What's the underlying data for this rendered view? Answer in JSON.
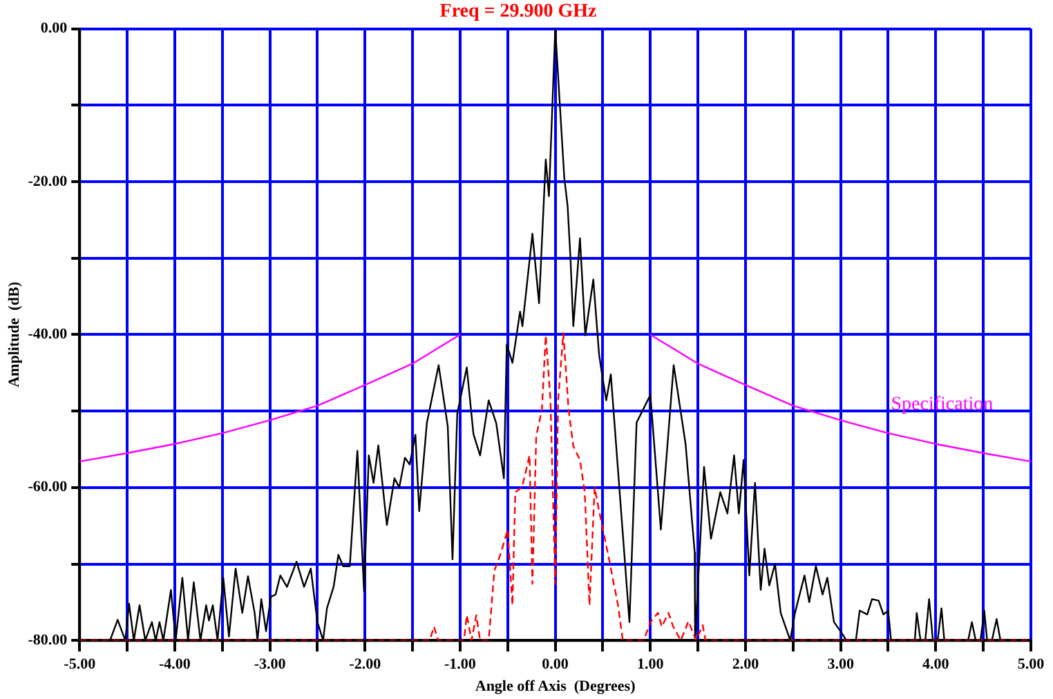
{
  "chart_data": {
    "type": "line",
    "title": "Freq = 29.900 GHz",
    "xlabel": "Angle off Axis  (Degrees)",
    "ylabel": "Amplitude  (dB)",
    "xlim": [
      -5,
      5
    ],
    "ylim": [
      -80,
      0
    ],
    "xticks": [
      {
        "value": -5,
        "label": "-5.00"
      },
      {
        "value": -4.5,
        "label": null
      },
      {
        "value": -4,
        "label": "-4.00"
      },
      {
        "value": -3.5,
        "label": null
      },
      {
        "value": -3,
        "label": "-3.00"
      },
      {
        "value": -2.5,
        "label": null
      },
      {
        "value": -2,
        "label": "-2.00"
      },
      {
        "value": -1.5,
        "label": null
      },
      {
        "value": -1,
        "label": "-1.00"
      },
      {
        "value": -0.5,
        "label": null
      },
      {
        "value": 0,
        "label": "0.00"
      },
      {
        "value": 0.5,
        "label": null
      },
      {
        "value": 1,
        "label": "1.00"
      },
      {
        "value": 1.5,
        "label": null
      },
      {
        "value": 2,
        "label": "2.00"
      },
      {
        "value": 2.5,
        "label": null
      },
      {
        "value": 3,
        "label": "3.00"
      },
      {
        "value": 3.5,
        "label": null
      },
      {
        "value": 4,
        "label": "4.00"
      },
      {
        "value": 4.5,
        "label": null
      },
      {
        "value": 5,
        "label": "5.00"
      }
    ],
    "yticks": [
      {
        "value": -80,
        "label": "-80.00"
      },
      {
        "value": -70,
        "label": null
      },
      {
        "value": -60,
        "label": "-60.00"
      },
      {
        "value": -50,
        "label": null
      },
      {
        "value": -40,
        "label": "-40.00"
      },
      {
        "value": -30,
        "label": null
      },
      {
        "value": -20,
        "label": "-20.00"
      },
      {
        "value": -10,
        "label": null
      },
      {
        "value": 0,
        "label": "0.00"
      }
    ],
    "grid": true,
    "marker": "none",
    "series": [
      {
        "color": "#000000",
        "line_style": "solid",
        "x": [
          -5,
          -4.68,
          -4.6,
          -4.52,
          -4.48,
          -4.43,
          -4.37,
          -4.31,
          -4.24,
          -4.2,
          -4.16,
          -4.12,
          -4.04,
          -3.99,
          -3.92,
          -3.86,
          -3.8,
          -3.73,
          -3.67,
          -3.64,
          -3.6,
          -3.55,
          -3.49,
          -3.43,
          -3.36,
          -3.29,
          -3.23,
          -3.16,
          -3.13,
          -3.09,
          -3.04,
          -2.99,
          -2.94,
          -2.89,
          -2.82,
          -2.72,
          -2.64,
          -2.57,
          -2.5,
          -2.44,
          -2.4,
          -2.33,
          -2.28,
          -2.23,
          -2.16,
          -2.08,
          -2.01,
          -1.96,
          -1.91,
          -1.86,
          -1.77,
          -1.69,
          -1.64,
          -1.58,
          -1.53,
          -1.47,
          -1.43,
          -1.35,
          -1.226,
          -1.13,
          -1.08,
          -1.03,
          -0.93,
          -0.86,
          -0.79,
          -0.7,
          -0.62,
          -0.54,
          -0.51,
          -0.45,
          -0.37,
          -0.345,
          -0.24,
          -0.17,
          -0.1,
          -0.066,
          0,
          0.095,
          0.13,
          0.16,
          0.19,
          0.26,
          0.316,
          0.4,
          0.46,
          0.488,
          0.536,
          0.584,
          0.78,
          0.855,
          1.0,
          1.11,
          1.245,
          1.37,
          1.466,
          1.47,
          1.564,
          1.637,
          1.735,
          1.81,
          1.88,
          1.93,
          1.98,
          2.04,
          2.1,
          2.16,
          2.2,
          2.25,
          2.31,
          2.37,
          2.47,
          2.52,
          2.62,
          2.67,
          2.74,
          2.81,
          2.86,
          2.93,
          3.01,
          3.06,
          3.16,
          3.2,
          3.28,
          3.33,
          3.4,
          3.45,
          3.5,
          3.53,
          3.78,
          3.8,
          3.84,
          3.89,
          3.93,
          3.97,
          4.02,
          4.06,
          4.09,
          4.34,
          4.38,
          4.42,
          4.47,
          4.51,
          4.54,
          4.59,
          4.64,
          4.68,
          5
        ],
        "values": [
          -80,
          -80,
          -77.3,
          -80,
          -75.2,
          -80,
          -75.4,
          -80,
          -77.6,
          -80,
          -77.6,
          -80,
          -73.4,
          -80,
          -71.8,
          -80,
          -72.4,
          -80,
          -75.4,
          -77.4,
          -75.4,
          -80,
          -71.8,
          -79.5,
          -70.6,
          -76.4,
          -71.6,
          -76.4,
          -80,
          -74.6,
          -78.8,
          -74.3,
          -74,
          -71.5,
          -73,
          -69.7,
          -73,
          -70.6,
          -77.6,
          -80,
          -75.8,
          -73,
          -68.8,
          -70.3,
          -70.3,
          -55.2,
          -73.6,
          -55.8,
          -59.4,
          -54.5,
          -64.9,
          -58.8,
          -60,
          -56.1,
          -57,
          -53.1,
          -63.1,
          -51.6,
          -44,
          -52,
          -69.4,
          -50.3,
          -44.3,
          -53,
          -55.8,
          -48.6,
          -51.6,
          -58.8,
          -41.3,
          -43.7,
          -37,
          -38.9,
          -26.8,
          -35.9,
          -17.1,
          -21.9,
          0,
          -19.5,
          -23.2,
          -30,
          -38.9,
          -27.4,
          -40.1,
          -32.8,
          -42.5,
          -44.9,
          -48.6,
          -45.2,
          -77.6,
          -51.5,
          -47.9,
          -65.5,
          -44,
          -54.3,
          -68.5,
          -80,
          -57.3,
          -66.7,
          -60.6,
          -63.4,
          -55.8,
          -63.4,
          -56.4,
          -71.5,
          -59.4,
          -73.4,
          -68,
          -72.8,
          -70,
          -76.4,
          -80,
          -76.4,
          -71.5,
          -75,
          -70.3,
          -74,
          -71.8,
          -77.6,
          -79,
          -80,
          -80,
          -76.1,
          -76.6,
          -74.6,
          -74.8,
          -76.6,
          -76.1,
          -80,
          -80,
          -76.4,
          -80,
          -80,
          -74.6,
          -80,
          -80,
          -75.8,
          -80,
          -80,
          -77.6,
          -80,
          -80,
          -76.1,
          -80,
          -80,
          -77.2,
          -80,
          -80
        ]
      },
      {
        "color": "#ff0000",
        "line_style": "dashed",
        "x": [
          -5,
          -1.32,
          -1.275,
          -1.23,
          -0.96,
          -0.93,
          -0.88,
          -0.83,
          -0.79,
          -0.7,
          -0.64,
          -0.57,
          -0.5,
          -0.45,
          -0.42,
          -0.35,
          -0.27,
          -0.24,
          -0.2,
          -0.14,
          -0.1,
          -0.05,
          0,
          0.03,
          0.085,
          0.14,
          0.19,
          0.26,
          0.31,
          0.36,
          0.414,
          0.46,
          0.54,
          0.58,
          0.66,
          0.71,
          0.93,
          1.0,
          1.08,
          1.12,
          1.19,
          1.24,
          1.32,
          1.4,
          1.48,
          1.55,
          1.58,
          5
        ],
        "values": [
          -80,
          -80,
          -78.2,
          -80,
          -80,
          -76.7,
          -80,
          -76.7,
          -80,
          -80,
          -70.9,
          -68.5,
          -65.5,
          -75.4,
          -60.6,
          -60,
          -55.8,
          -72.6,
          -53.3,
          -49.8,
          -40.1,
          -48.6,
          -72.6,
          -48.6,
          -39.8,
          -49.8,
          -54.6,
          -56.4,
          -60.6,
          -75.4,
          -60,
          -63,
          -67.8,
          -70.3,
          -75.4,
          -80,
          -80,
          -77.6,
          -76.4,
          -78.2,
          -76.4,
          -78.2,
          -80,
          -77.5,
          -80,
          -78,
          -80,
          -80
        ]
      },
      {
        "name": "Specification",
        "color": "#ff00ff",
        "line_style": "solid",
        "x": [
          -5,
          -4.5,
          -4,
          -3.5,
          -3,
          -2.5,
          -2,
          -1.5,
          -1,
          0,
          1,
          1.5,
          2,
          2.5,
          3,
          3.5,
          4,
          4.5,
          5
        ],
        "values": [
          -56.6,
          -55.5,
          -54.3,
          -52.9,
          -51.2,
          -49.3,
          -46.6,
          -43.8,
          -40,
          null,
          -40,
          -43.8,
          -46.6,
          -49.3,
          -51.2,
          -52.9,
          -54.3,
          -55.5,
          -56.6
        ]
      }
    ]
  }
}
